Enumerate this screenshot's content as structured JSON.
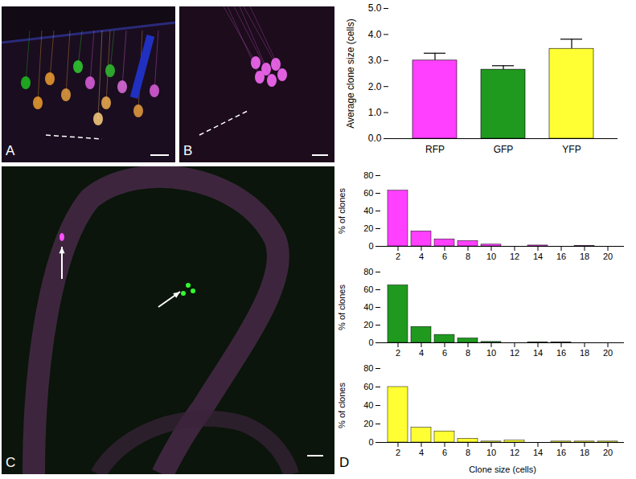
{
  "images": [
    {
      "label": "A"
    },
    {
      "label": "B"
    },
    {
      "label": "C"
    }
  ],
  "chart_data": [
    {
      "type": "bar",
      "categories": [
        "RFP",
        "GFP",
        "YFP"
      ],
      "values": [
        3.0,
        2.65,
        3.45
      ],
      "errors": [
        0.28,
        0.15,
        0.37
      ],
      "colors": [
        "#ff40ff",
        "#1f9a1f",
        "#ffff33"
      ],
      "y_label": "Average clone size (cells)",
      "ylim": [
        0,
        5
      ],
      "yticks": [
        0,
        1,
        2,
        3,
        4,
        5
      ]
    },
    {
      "type": "bar",
      "categories": [
        2,
        4,
        6,
        8,
        10,
        12,
        14,
        16,
        18,
        20
      ],
      "values": [
        63,
        17,
        8,
        6,
        2,
        0,
        1,
        0,
        0.5,
        0
      ],
      "color": "#ff40ff",
      "y_label": "% of clones",
      "ylim": [
        0,
        80
      ],
      "yticks": [
        0,
        20,
        40,
        60,
        80
      ]
    },
    {
      "type": "bar",
      "categories": [
        2,
        4,
        6,
        8,
        10,
        12,
        14,
        16,
        18,
        20
      ],
      "values": [
        65,
        18,
        9,
        5,
        1,
        0,
        0.5,
        0.5,
        0,
        0
      ],
      "color": "#1f9a1f",
      "y_label": "% of clones",
      "ylim": [
        0,
        80
      ],
      "yticks": [
        0,
        20,
        40,
        60,
        80
      ]
    },
    {
      "type": "bar",
      "categories": [
        2,
        4,
        6,
        8,
        10,
        12,
        14,
        16,
        18,
        20
      ],
      "values": [
        60,
        16,
        12,
        4,
        1,
        2,
        0,
        1,
        1,
        1
      ],
      "color": "#ffff33",
      "y_label": "% of clones",
      "x_label": "Clone size (cells)",
      "ylim": [
        0,
        80
      ],
      "yticks": [
        0,
        20,
        40,
        60,
        80
      ],
      "annotations": [
        "D"
      ]
    }
  ]
}
